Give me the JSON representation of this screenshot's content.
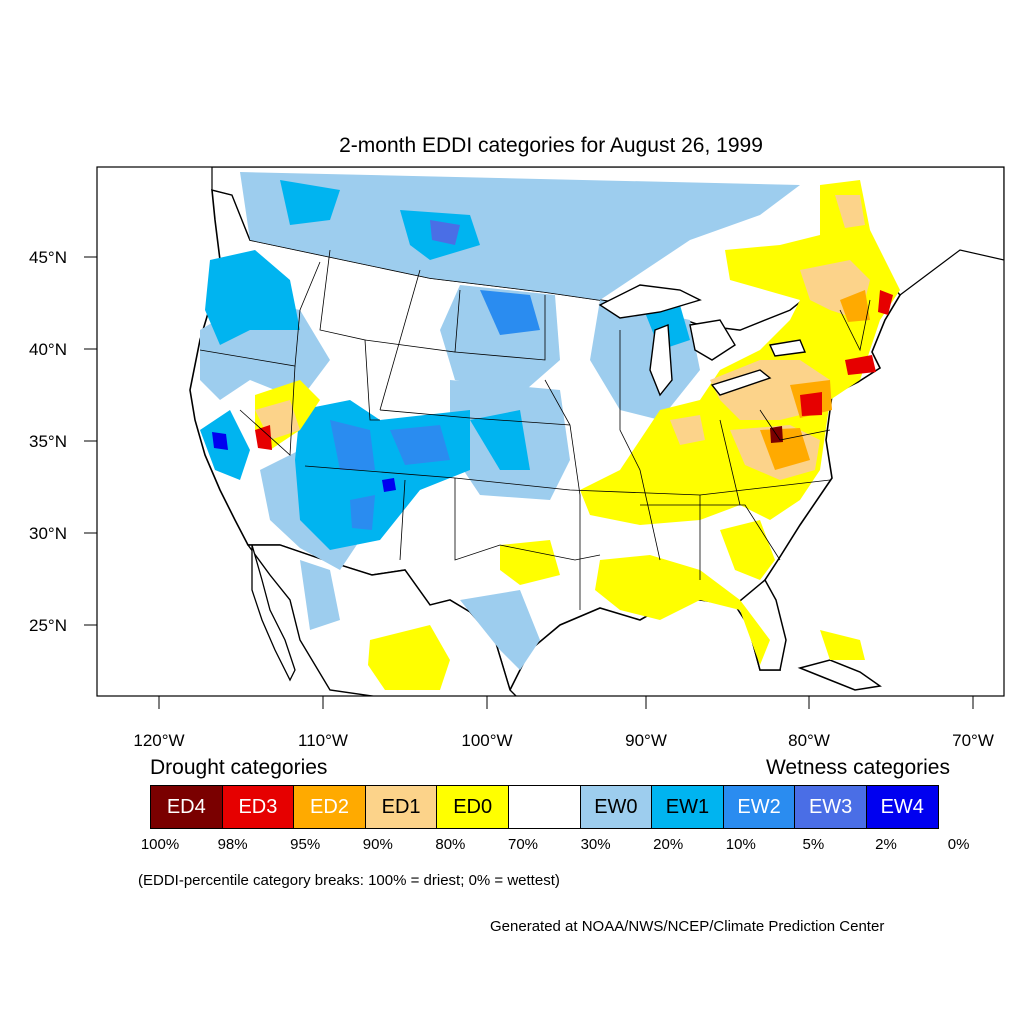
{
  "title": "2-month EDDI categories for August 26, 1999",
  "axes": {
    "lat_labels": [
      "45°N",
      "40°N",
      "35°N",
      "30°N",
      "25°N"
    ],
    "lon_labels": [
      "120°W",
      "110°W",
      "100°W",
      "90°W",
      "80°W",
      "70°W"
    ]
  },
  "legend": {
    "drought_heading": "Drought categories",
    "wetness_heading": "Wetness categories",
    "categories": [
      {
        "label": "ED4",
        "color": "#7a0000",
        "text_color": "#ffffff"
      },
      {
        "label": "ED3",
        "color": "#e60000",
        "text_color": "#ffffff"
      },
      {
        "label": "ED2",
        "color": "#ffaa00",
        "text_color": "#ffffff"
      },
      {
        "label": "ED1",
        "color": "#fcd38a",
        "text_color": "#000000"
      },
      {
        "label": "ED0",
        "color": "#ffff00",
        "text_color": "#000000"
      },
      {
        "label": "",
        "color": "#ffffff",
        "text_color": "#000000"
      },
      {
        "label": "EW0",
        "color": "#9dcdee",
        "text_color": "#000000"
      },
      {
        "label": "EW1",
        "color": "#00b4f0",
        "text_color": "#000000"
      },
      {
        "label": "EW2",
        "color": "#2a8cf0",
        "text_color": "#ffffff"
      },
      {
        "label": "EW3",
        "color": "#4a6ee6",
        "text_color": "#ffffff"
      },
      {
        "label": "EW4",
        "color": "#0000f0",
        "text_color": "#ffffff"
      }
    ],
    "breaks": [
      "100%",
      "98%",
      "95%",
      "90%",
      "80%",
      "70%",
      "30%",
      "20%",
      "10%",
      "5%",
      "2%",
      "0%"
    ]
  },
  "note": "(EDDI-percentile category breaks: 100% = driest; 0% = wettest)",
  "credit": "Generated at NOAA/NWS/NCEP/Climate Prediction Center"
}
